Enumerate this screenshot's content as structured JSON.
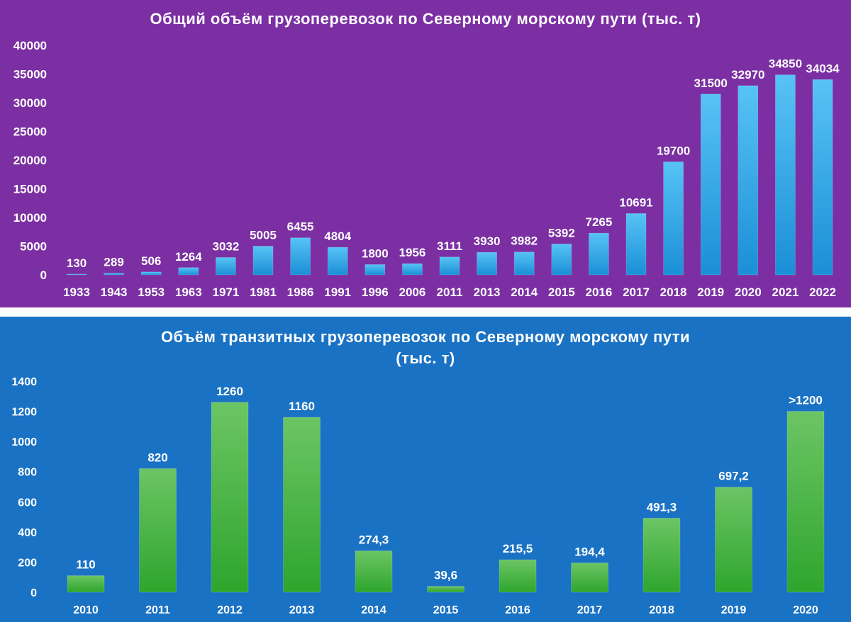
{
  "colors": {
    "panel_top_bg": "#7b2fa3",
    "panel_bottom_bg": "#1a72c4",
    "bar_top": "#2fa8ea",
    "bar_bottom": "#43b53f",
    "text": "#ffffff"
  },
  "chart_data": [
    {
      "type": "bar",
      "title": "Общий объём грузоперевозок по Северному морскому пути (тыс. т)",
      "categories": [
        "1933",
        "1943",
        "1953",
        "1963",
        "1971",
        "1981",
        "1986",
        "1991",
        "1996",
        "2006",
        "2011",
        "2013",
        "2014",
        "2015",
        "2016",
        "2017",
        "2018",
        "2019",
        "2020",
        "2021",
        "2022"
      ],
      "values": [
        130,
        289,
        506,
        1264,
        3032,
        5005,
        6455,
        4804,
        1800,
        1956,
        3111,
        3930,
        3982,
        5392,
        7265,
        10691,
        19700,
        31500,
        32970,
        34850,
        34034
      ],
      "data_labels": [
        "130",
        "289",
        "506",
        "1264",
        "3032",
        "5005",
        "6455",
        "4804",
        "1800",
        "1956",
        "3111",
        "3930",
        "3982",
        "5392",
        "7265",
        "10691",
        "19700",
        "31500",
        "32970",
        "34850",
        "34034"
      ],
      "ylim": [
        0,
        40000
      ],
      "yticks": [
        "0",
        "5000",
        "10000",
        "15000",
        "20000",
        "25000",
        "30000",
        "35000",
        "40000"
      ],
      "grid": false,
      "legend": "none"
    },
    {
      "type": "bar",
      "title_lines": [
        "Объём транзитных грузоперевозок по Северному морскому пути",
        "(тыс. т)"
      ],
      "categories": [
        "2010",
        "2011",
        "2012",
        "2013",
        "2014",
        "2015",
        "2016",
        "2017",
        "2018",
        "2019",
        "2020"
      ],
      "values": [
        110,
        820,
        1260,
        1160,
        274.3,
        39.6,
        215.5,
        194.4,
        491.3,
        697.2,
        1200
      ],
      "data_labels": [
        "110",
        "820",
        "1260",
        "1160",
        "274,3",
        "39,6",
        "215,5",
        "194,4",
        "491,3",
        "697,2",
        ">1200"
      ],
      "ylim": [
        0,
        1400
      ],
      "yticks": [
        "0",
        "200",
        "400",
        "600",
        "800",
        "1000",
        "1200",
        "1400"
      ],
      "grid": false,
      "legend": "none"
    }
  ]
}
